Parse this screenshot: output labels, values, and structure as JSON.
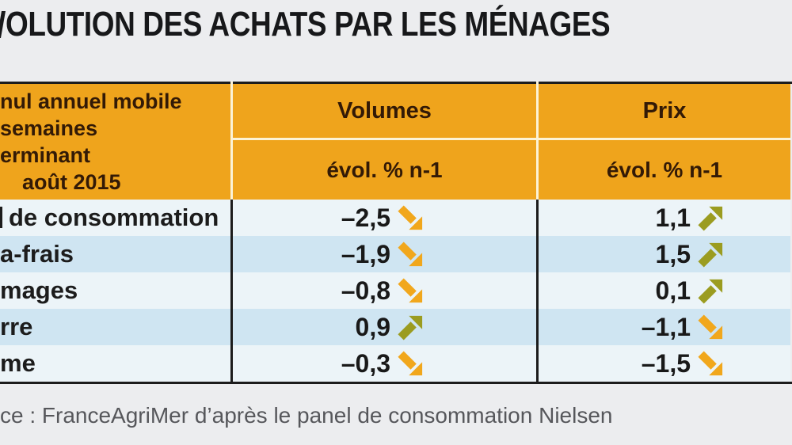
{
  "title": "OLUTION DES ACHATS PAR LES MÉNAGES",
  "table": {
    "header": {
      "period_lines": [
        "nul annuel mobile",
        "semaines",
        "erminant",
        "août 2015"
      ],
      "col_volumes": "Volumes",
      "col_prix": "Prix",
      "subheader": "évol. % n-1"
    },
    "rows": [
      {
        "label": "de consommation",
        "volume": "–2,5",
        "volume_trend": "down",
        "price": "1,1",
        "price_trend": "up"
      },
      {
        "label": "a-frais",
        "volume": "–1,9",
        "volume_trend": "down",
        "price": "1,5",
        "price_trend": "up"
      },
      {
        "label": "mages",
        "volume": "–0,8",
        "volume_trend": "down",
        "price": "0,1",
        "price_trend": "up"
      },
      {
        "label": "rre",
        "volume": "0,9",
        "volume_trend": "up",
        "price": "–1,1",
        "price_trend": "down"
      },
      {
        "label": "me",
        "volume": "–0,3",
        "volume_trend": "down",
        "price": "–1,5",
        "price_trend": "down"
      }
    ]
  },
  "source": "ce : FranceAgriMer d’après le panel de consommation Nielsen",
  "colors": {
    "page_bg": "#ecedef",
    "title_color": "#17181a",
    "header_bg": "#efa41c",
    "header_text": "#331a06",
    "divider_cream": "#fcf3d6",
    "border_dark": "#1c1c1c",
    "row_light": "#ecf4f8",
    "row_dark": "#cfe5f2",
    "arrow_up": "#9b9c20",
    "arrow_down": "#f1a71c",
    "source_text": "#56575b"
  },
  "chart_data": {
    "type": "table",
    "title": "OLUTION DES ACHATS PAR LES MÉNAGES",
    "period_header": "nul annuel mobile semaines erminant août 2015",
    "columns": [
      "",
      "Volumes évol. % n-1",
      "Prix évol. % n-1"
    ],
    "rows": [
      [
        "de consommation",
        -2.5,
        1.1
      ],
      [
        "a-frais",
        -1.9,
        1.5
      ],
      [
        "mages",
        -0.8,
        0.1
      ],
      [
        "rre",
        0.9,
        -1.1
      ],
      [
        "me",
        -0.3,
        -1.5
      ]
    ],
    "trends": {
      "volumes": [
        "down",
        "down",
        "down",
        "up",
        "down"
      ],
      "prix": [
        "up",
        "up",
        "up",
        "down",
        "down"
      ]
    },
    "source": "ce : FranceAgriMer d’après le panel de consommation Nielsen"
  }
}
